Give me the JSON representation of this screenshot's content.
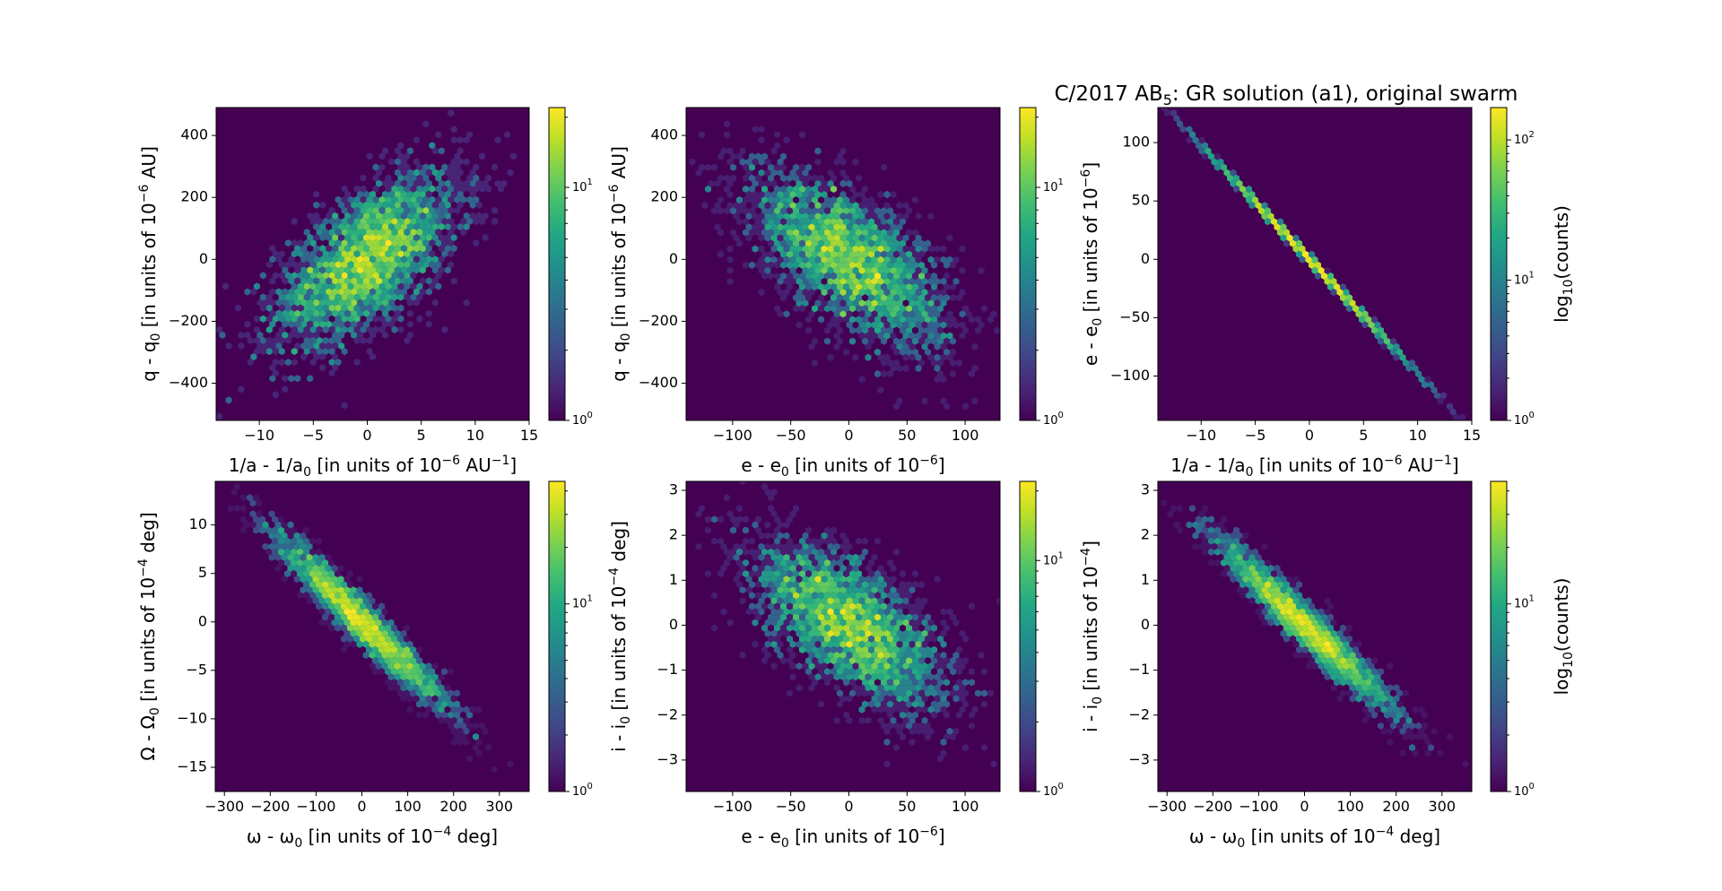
{
  "chart_data": [
    {
      "type": "heatmap",
      "subtype": "hexbin",
      "id": "p1",
      "title": "",
      "xlabel": "1/a - 1/a0 [in units of 10^-6 AU^-1]",
      "ylabel": "q - q0 [in units of 10^-6 AU]",
      "xlim": [
        -14,
        15
      ],
      "ylim": [
        -520,
        490
      ],
      "xticks": [
        -10,
        -5,
        0,
        5,
        10,
        15
      ],
      "xtick_labels": [
        "−10",
        "−5",
        "0",
        "5",
        "10",
        "15"
      ],
      "yticks": [
        400,
        200,
        0,
        -200,
        -400
      ],
      "ytick_labels": [
        "400",
        "200",
        "0",
        "−200",
        "−400"
      ],
      "distribution": {
        "mean": [
          0,
          0
        ],
        "std": [
          4.3,
          140
        ],
        "corr": 0.62,
        "peak_count": 22
      },
      "colorbar": {
        "scale": "log",
        "range": [
          1,
          22
        ],
        "tick_labels": [
          "10⁰",
          "10¹"
        ],
        "label": ""
      }
    },
    {
      "type": "heatmap",
      "subtype": "hexbin",
      "id": "p2",
      "title": "",
      "xlabel": "e - e0 [in units of 10^-6]",
      "ylabel": "q - q0 [in units of 10^-6 AU]",
      "xlim": [
        -140,
        130
      ],
      "ylim": [
        -520,
        490
      ],
      "xticks": [
        -100,
        -50,
        0,
        50,
        100
      ],
      "xtick_labels": [
        "−100",
        "−50",
        "0",
        "50",
        "100"
      ],
      "yticks": [
        400,
        200,
        0,
        -200,
        -400
      ],
      "ytick_labels": [
        "400",
        "200",
        "0",
        "−200",
        "−400"
      ],
      "distribution": {
        "mean": [
          0,
          0
        ],
        "std": [
          42,
          140
        ],
        "corr": -0.62,
        "peak_count": 22
      },
      "colorbar": {
        "scale": "log",
        "range": [
          1,
          22
        ],
        "tick_labels": [
          "10⁰",
          "10¹"
        ],
        "label": ""
      }
    },
    {
      "type": "heatmap",
      "subtype": "hexbin",
      "id": "p3",
      "title": "C/2017 AB5: GR solution (a1), original swarm",
      "xlabel": "1/a - 1/a0 [in units of 10^-6 AU^-1]",
      "ylabel": "e - e0 [in units of 10^-6]",
      "xlim": [
        -14,
        15
      ],
      "ylim": [
        -138,
        130
      ],
      "xticks": [
        -10,
        -5,
        0,
        5,
        10,
        15
      ],
      "xtick_labels": [
        "−10",
        "−5",
        "0",
        "5",
        "10",
        "15"
      ],
      "yticks": [
        100,
        50,
        0,
        -50,
        -100
      ],
      "ytick_labels": [
        "100",
        "50",
        "0",
        "−50",
        "−100"
      ],
      "distribution": {
        "mean": [
          0,
          0
        ],
        "std": [
          4.3,
          42
        ],
        "corr": -0.9995,
        "slope": -9.6,
        "peak_count": 170
      },
      "colorbar": {
        "scale": "log",
        "range": [
          1,
          170
        ],
        "tick_labels": [
          "10⁰",
          "10¹",
          "10²"
        ],
        "label": "log10(counts)"
      }
    },
    {
      "type": "heatmap",
      "subtype": "hexbin",
      "id": "p4",
      "title": "",
      "xlabel": "ω - ω0 [in units of 10^-4 deg]",
      "ylabel": "Ω - Ω0 [in units of 10^-4 deg]",
      "xlim": [
        -320,
        365
      ],
      "ylim": [
        -17.5,
        14.5
      ],
      "xticks": [
        -300,
        -200,
        -100,
        0,
        100,
        200,
        300
      ],
      "xtick_labels": [
        "−300",
        "−200",
        "−100",
        "0",
        "100",
        "200",
        "300"
      ],
      "yticks": [
        10,
        5,
        0,
        -5,
        -10,
        -15
      ],
      "ytick_labels": [
        "10",
        "5",
        "0",
        "−5",
        "−10",
        "−15"
      ],
      "distribution": {
        "mean": [
          0,
          0
        ],
        "std": [
          95,
          4.5
        ],
        "corr": -0.96,
        "peak_count": 45
      },
      "colorbar": {
        "scale": "log",
        "range": [
          1,
          45
        ],
        "tick_labels": [
          "10⁰",
          "10¹"
        ],
        "label": ""
      }
    },
    {
      "type": "heatmap",
      "subtype": "hexbin",
      "id": "p5",
      "title": "",
      "xlabel": "e - e0 [in units of 10^-6]",
      "ylabel": "i - i0 [in units of 10^-4 deg]",
      "xlim": [
        -140,
        130
      ],
      "ylim": [
        -3.7,
        3.2
      ],
      "xticks": [
        -100,
        -50,
        0,
        50,
        100
      ],
      "xtick_labels": [
        "−100",
        "−50",
        "0",
        "50",
        "100"
      ],
      "yticks": [
        3,
        2,
        1,
        0,
        -1,
        -2,
        -3
      ],
      "ytick_labels": [
        "3",
        "2",
        "1",
        "0",
        "−1",
        "−2",
        "−3"
      ],
      "distribution": {
        "mean": [
          0,
          0
        ],
        "std": [
          42,
          0.95
        ],
        "corr": -0.62,
        "peak_count": 22
      },
      "colorbar": {
        "scale": "log",
        "range": [
          1,
          22
        ],
        "tick_labels": [
          "10⁰",
          "10¹"
        ],
        "label": ""
      }
    },
    {
      "type": "heatmap",
      "subtype": "hexbin",
      "id": "p6",
      "title": "",
      "xlabel": "ω - ω0 [in units of 10^-4 deg]",
      "ylabel": "i - i0 [in units of 10^-4]",
      "xlim": [
        -320,
        365
      ],
      "ylim": [
        -3.7,
        3.2
      ],
      "xticks": [
        -300,
        -200,
        -100,
        0,
        100,
        200,
        300
      ],
      "xtick_labels": [
        "−300",
        "−200",
        "−100",
        "0",
        "100",
        "200",
        "300"
      ],
      "yticks": [
        3,
        2,
        1,
        0,
        -1,
        -2,
        -3
      ],
      "ytick_labels": [
        "3",
        "2",
        "1",
        "0",
        "−1",
        "−2",
        "−3"
      ],
      "distribution": {
        "mean": [
          0,
          0
        ],
        "std": [
          95,
          0.95
        ],
        "corr": -0.96,
        "peak_count": 45
      },
      "colorbar": {
        "scale": "log",
        "range": [
          1,
          45
        ],
        "tick_labels": [
          "10⁰",
          "10¹"
        ],
        "label": "log10(counts)"
      }
    }
  ],
  "labels": {
    "suptitle": {
      "pre": "C/2017 AB",
      "sub": "5",
      "post": ": GR solution (a1), original swarm"
    },
    "x_inv_a": {
      "pre": "1/a - 1/a",
      "sub": "0",
      "mid": " [in units of 10",
      "sup": "−6",
      "mid2": " AU",
      "sup2": "−1",
      "post": "]"
    },
    "x_e": {
      "pre": "e - e",
      "sub": "0",
      "mid": " [in units of 10",
      "sup": "−6",
      "post": "]"
    },
    "x_omega": {
      "pre": "ω - ω",
      "sub": "0",
      "mid": " [in units of 10",
      "sup": "−4",
      "post": " deg]"
    },
    "y_q": {
      "pre": "q - q",
      "sub": "0",
      "mid": " [in units of 10",
      "sup": "−6",
      "post": " AU]"
    },
    "y_e": {
      "pre": "e - e",
      "sub": "0",
      "mid": " [in units of 10",
      "sup": "−6",
      "post": "]"
    },
    "y_Omega": {
      "pre": "Ω - Ω",
      "sub": "0",
      "mid": " [in units of 10",
      "sup": "−4",
      "post": " deg]"
    },
    "y_i_deg": {
      "pre": "i - i",
      "sub": "0",
      "mid": " [in units of 10",
      "sup": "−4",
      "post": " deg]"
    },
    "y_i": {
      "pre": "i - i",
      "sub": "0",
      "mid": " [in units of 10",
      "sup": "−4",
      "post": "]"
    },
    "cb_label": {
      "pre": "log",
      "sub": "10",
      "post": "(counts)"
    }
  },
  "colors": {
    "background_bin": "#440154",
    "frame": "#000000"
  }
}
